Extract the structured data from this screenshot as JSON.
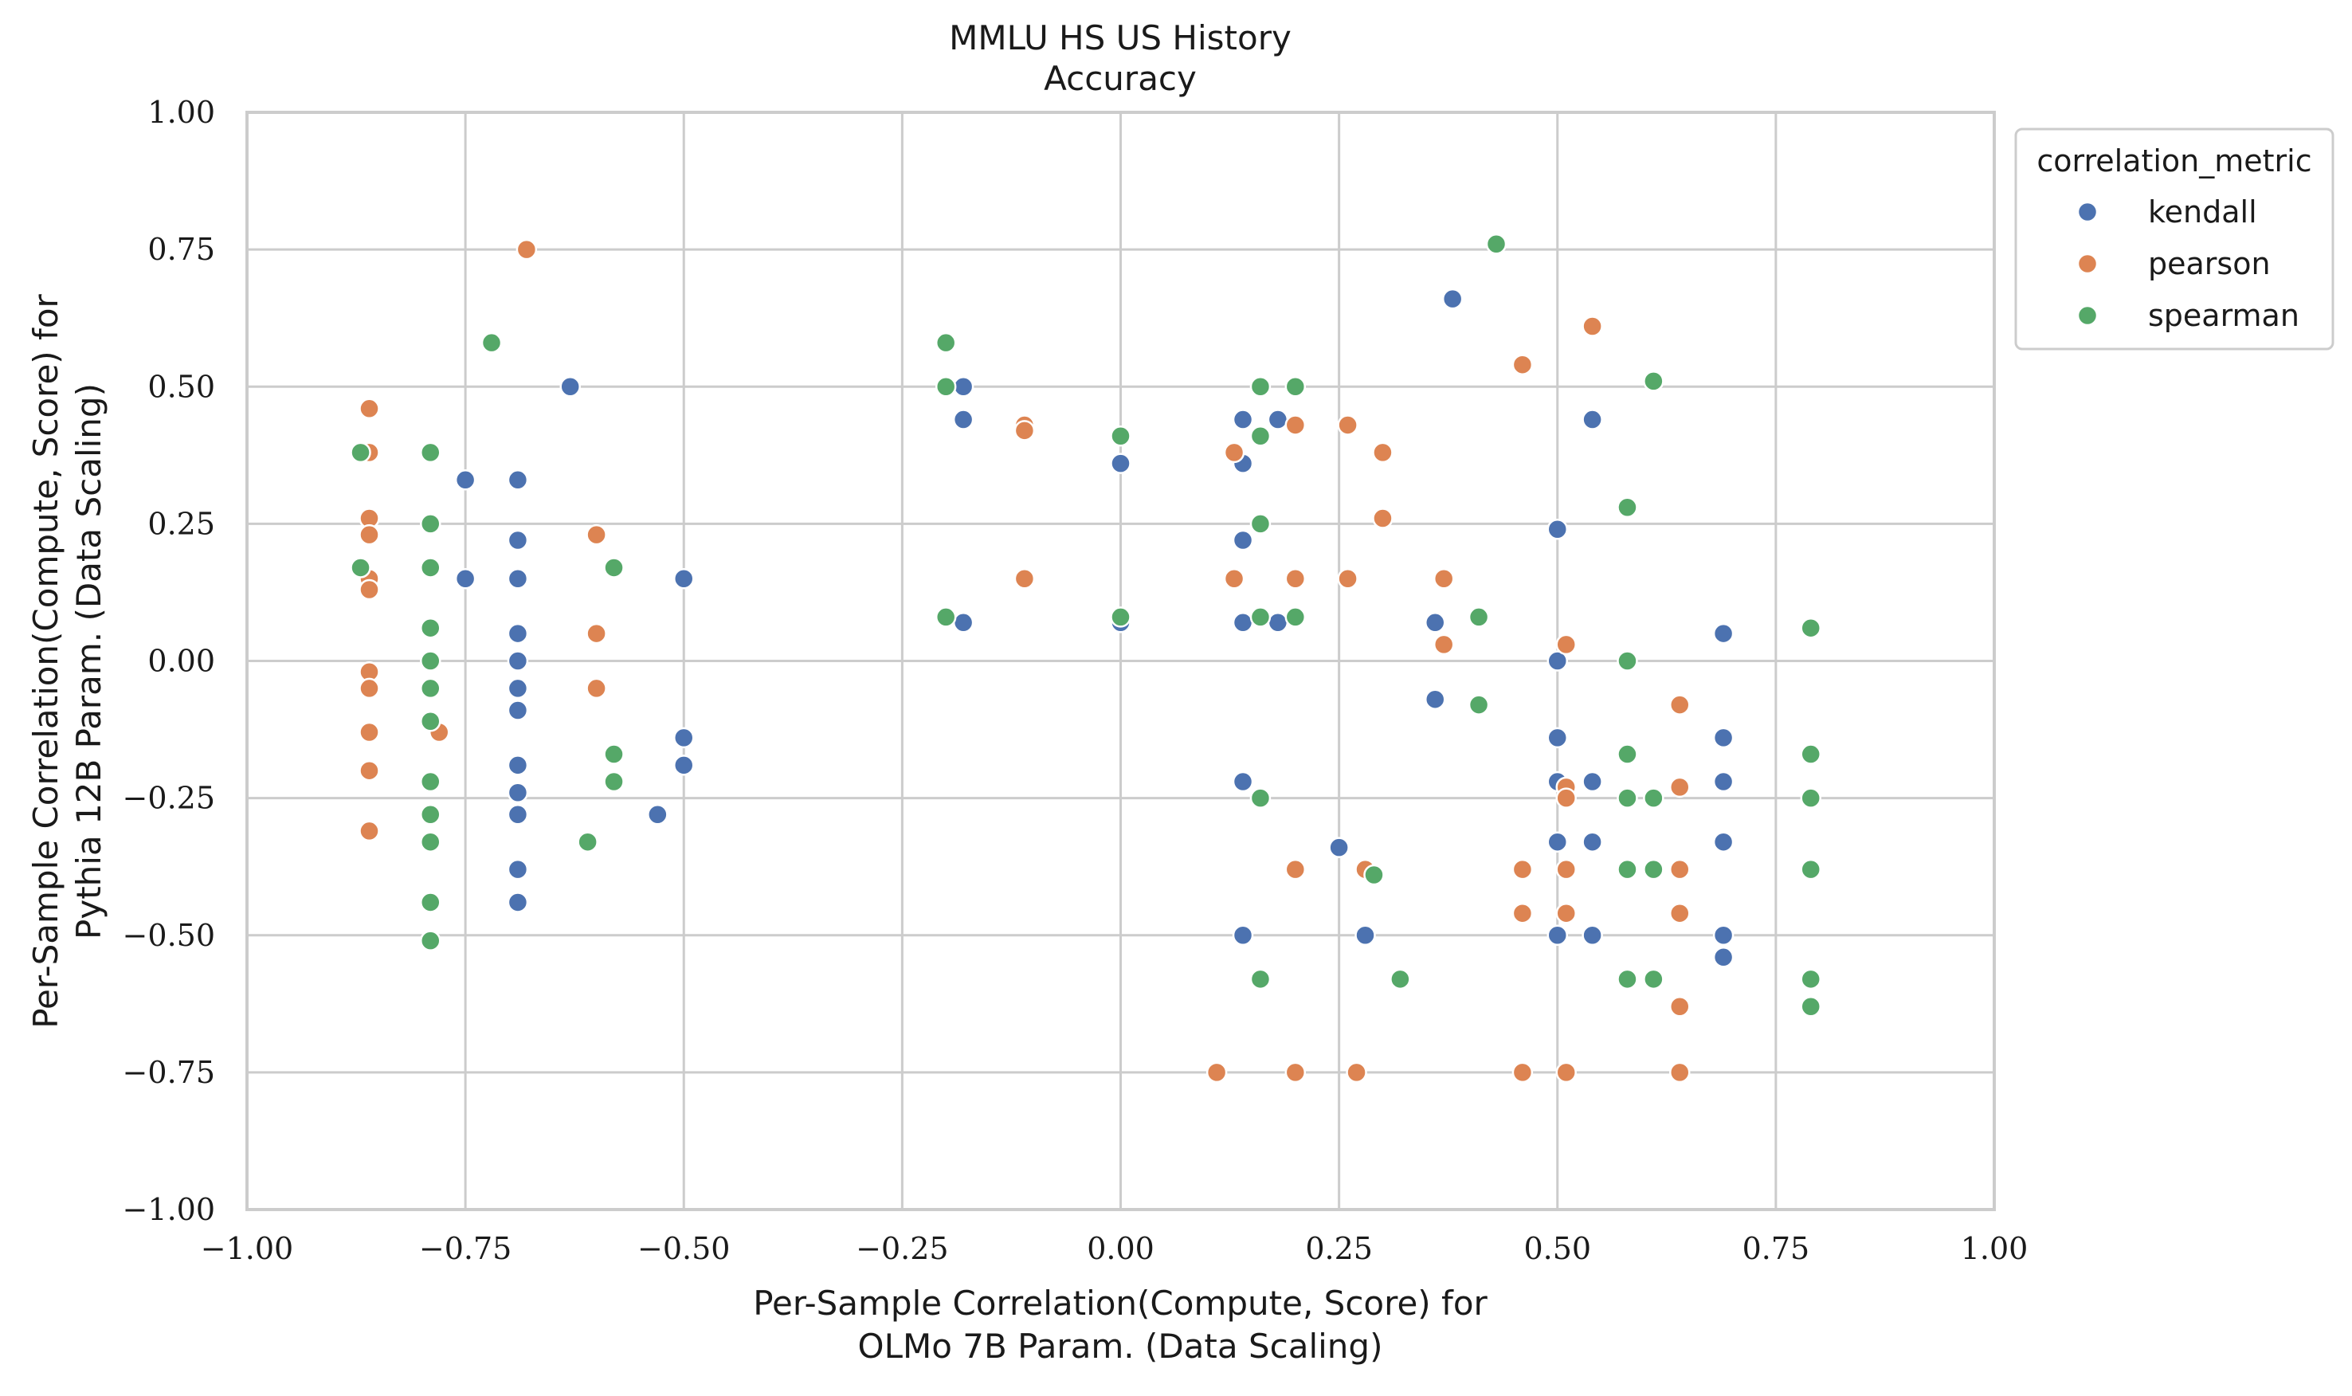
{
  "chart_data": {
    "type": "scatter",
    "title": [
      "MMLU HS US History",
      "Accuracy"
    ],
    "xlabel": [
      "Per-Sample Correlation(Compute, Score) for",
      "OLMo 7B Param. (Data Scaling)"
    ],
    "ylabel": [
      "Per-Sample Correlation(Compute, Score) for",
      "Pythia 12B Param. (Data Scaling)"
    ],
    "xlim": [
      -1.0,
      1.0
    ],
    "ylim": [
      -1.0,
      1.0
    ],
    "xticks": [
      -1.0,
      -0.75,
      -0.5,
      -0.25,
      0.0,
      0.25,
      0.5,
      0.75,
      1.0
    ],
    "yticks": [
      -1.0,
      -0.75,
      -0.5,
      -0.25,
      0.0,
      0.25,
      0.5,
      0.75,
      1.0
    ],
    "xtick_labels": [
      "−1.00",
      "−0.75",
      "−0.50",
      "−0.25",
      "0.00",
      "0.25",
      "0.50",
      "0.75",
      "1.00"
    ],
    "ytick_labels": [
      "−1.00",
      "−0.75",
      "−0.50",
      "−0.25",
      "0.00",
      "0.25",
      "0.50",
      "0.75",
      "1.00"
    ],
    "grid": true,
    "legend": {
      "title": "correlation_metric",
      "placement": "outside-top-right"
    },
    "series": [
      {
        "name": "kendall",
        "color": "#4c72b0",
        "points": [
          [
            -0.75,
            0.33
          ],
          [
            -0.75,
            0.15
          ],
          [
            -0.69,
            0.33
          ],
          [
            -0.69,
            0.22
          ],
          [
            -0.69,
            0.15
          ],
          [
            -0.69,
            0.05
          ],
          [
            -0.69,
            0.0
          ],
          [
            -0.69,
            -0.05
          ],
          [
            -0.69,
            -0.09
          ],
          [
            -0.69,
            -0.19
          ],
          [
            -0.69,
            -0.24
          ],
          [
            -0.69,
            -0.28
          ],
          [
            -0.69,
            -0.38
          ],
          [
            -0.69,
            -0.44
          ],
          [
            -0.63,
            0.5
          ],
          [
            -0.53,
            -0.28
          ],
          [
            -0.5,
            0.15
          ],
          [
            -0.5,
            -0.14
          ],
          [
            -0.5,
            -0.19
          ],
          [
            -0.18,
            0.5
          ],
          [
            -0.18,
            0.44
          ],
          [
            -0.18,
            0.07
          ],
          [
            0.0,
            0.36
          ],
          [
            0.0,
            0.07
          ],
          [
            0.14,
            0.44
          ],
          [
            0.14,
            0.36
          ],
          [
            0.14,
            0.22
          ],
          [
            0.14,
            0.07
          ],
          [
            0.14,
            -0.22
          ],
          [
            0.14,
            -0.5
          ],
          [
            0.18,
            0.44
          ],
          [
            0.18,
            0.07
          ],
          [
            0.25,
            -0.34
          ],
          [
            0.28,
            -0.5
          ],
          [
            0.36,
            0.07
          ],
          [
            0.36,
            -0.07
          ],
          [
            0.38,
            0.66
          ],
          [
            0.5,
            0.24
          ],
          [
            0.5,
            0.0
          ],
          [
            0.5,
            -0.14
          ],
          [
            0.5,
            -0.22
          ],
          [
            0.5,
            -0.33
          ],
          [
            0.5,
            -0.5
          ],
          [
            0.54,
            0.44
          ],
          [
            0.54,
            -0.22
          ],
          [
            0.54,
            -0.33
          ],
          [
            0.54,
            -0.5
          ],
          [
            0.69,
            0.05
          ],
          [
            0.69,
            -0.14
          ],
          [
            0.69,
            -0.22
          ],
          [
            0.69,
            -0.33
          ],
          [
            0.69,
            -0.5
          ],
          [
            0.69,
            -0.54
          ]
        ]
      },
      {
        "name": "pearson",
        "color": "#dd8452",
        "points": [
          [
            -0.86,
            0.46
          ],
          [
            -0.86,
            0.38
          ],
          [
            -0.86,
            0.26
          ],
          [
            -0.86,
            0.23
          ],
          [
            -0.86,
            0.15
          ],
          [
            -0.86,
            0.13
          ],
          [
            -0.86,
            -0.02
          ],
          [
            -0.86,
            -0.05
          ],
          [
            -0.86,
            -0.13
          ],
          [
            -0.86,
            -0.2
          ],
          [
            -0.86,
            -0.31
          ],
          [
            -0.78,
            -0.13
          ],
          [
            -0.68,
            0.75
          ],
          [
            -0.6,
            0.23
          ],
          [
            -0.6,
            0.05
          ],
          [
            -0.6,
            -0.05
          ],
          [
            -0.11,
            0.43
          ],
          [
            -0.11,
            0.42
          ],
          [
            -0.11,
            0.15
          ],
          [
            0.11,
            -0.75
          ],
          [
            0.13,
            0.38
          ],
          [
            0.13,
            0.15
          ],
          [
            0.2,
            0.43
          ],
          [
            0.2,
            0.15
          ],
          [
            0.2,
            -0.38
          ],
          [
            0.2,
            -0.75
          ],
          [
            0.26,
            0.43
          ],
          [
            0.26,
            0.15
          ],
          [
            0.27,
            -0.75
          ],
          [
            0.28,
            -0.38
          ],
          [
            0.3,
            0.38
          ],
          [
            0.3,
            0.26
          ],
          [
            0.37,
            0.15
          ],
          [
            0.37,
            0.03
          ],
          [
            0.46,
            0.54
          ],
          [
            0.46,
            -0.38
          ],
          [
            0.46,
            -0.46
          ],
          [
            0.46,
            -0.75
          ],
          [
            0.51,
            0.03
          ],
          [
            0.51,
            -0.23
          ],
          [
            0.51,
            -0.25
          ],
          [
            0.51,
            -0.38
          ],
          [
            0.51,
            -0.46
          ],
          [
            0.51,
            -0.75
          ],
          [
            0.54,
            0.61
          ],
          [
            0.64,
            -0.08
          ],
          [
            0.64,
            -0.23
          ],
          [
            0.64,
            -0.38
          ],
          [
            0.64,
            -0.46
          ],
          [
            0.64,
            -0.63
          ],
          [
            0.64,
            -0.75
          ]
        ]
      },
      {
        "name": "spearman",
        "color": "#55a868",
        "points": [
          [
            -0.87,
            0.38
          ],
          [
            -0.87,
            0.17
          ],
          [
            -0.79,
            0.38
          ],
          [
            -0.79,
            0.25
          ],
          [
            -0.79,
            0.17
          ],
          [
            -0.79,
            0.06
          ],
          [
            -0.79,
            0.0
          ],
          [
            -0.79,
            -0.05
          ],
          [
            -0.79,
            -0.11
          ],
          [
            -0.79,
            -0.22
          ],
          [
            -0.79,
            -0.28
          ],
          [
            -0.79,
            -0.33
          ],
          [
            -0.79,
            -0.44
          ],
          [
            -0.79,
            -0.51
          ],
          [
            -0.72,
            0.58
          ],
          [
            -0.61,
            -0.33
          ],
          [
            -0.58,
            0.17
          ],
          [
            -0.58,
            -0.17
          ],
          [
            -0.58,
            -0.22
          ],
          [
            -0.2,
            0.58
          ],
          [
            -0.2,
            0.5
          ],
          [
            -0.2,
            0.08
          ],
          [
            0.0,
            0.41
          ],
          [
            0.0,
            0.08
          ],
          [
            0.16,
            0.5
          ],
          [
            0.16,
            0.41
          ],
          [
            0.16,
            0.25
          ],
          [
            0.16,
            0.08
          ],
          [
            0.16,
            -0.25
          ],
          [
            0.16,
            -0.58
          ],
          [
            0.2,
            0.5
          ],
          [
            0.2,
            0.08
          ],
          [
            0.29,
            -0.39
          ],
          [
            0.32,
            -0.58
          ],
          [
            0.41,
            0.08
          ],
          [
            0.41,
            -0.08
          ],
          [
            0.43,
            0.76
          ],
          [
            0.58,
            0.28
          ],
          [
            0.58,
            0.0
          ],
          [
            0.58,
            -0.17
          ],
          [
            0.58,
            -0.25
          ],
          [
            0.58,
            -0.38
          ],
          [
            0.58,
            -0.58
          ],
          [
            0.61,
            0.51
          ],
          [
            0.61,
            -0.25
          ],
          [
            0.61,
            -0.38
          ],
          [
            0.61,
            -0.58
          ],
          [
            0.79,
            0.06
          ],
          [
            0.79,
            -0.17
          ],
          [
            0.79,
            -0.25
          ],
          [
            0.79,
            -0.38
          ],
          [
            0.79,
            -0.58
          ],
          [
            0.79,
            -0.63
          ]
        ]
      }
    ]
  }
}
